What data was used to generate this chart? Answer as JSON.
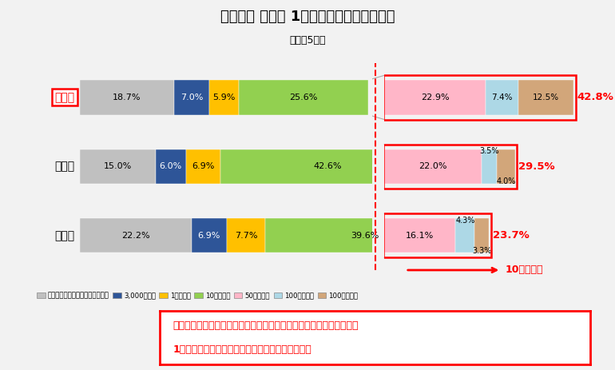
{
  "title": "侵入窃盗 手口別 1件あたりの被害額の割合",
  "subtitle": "（令和5年）",
  "categories": [
    "空き巣",
    "忍込み",
    "居空き"
  ],
  "segments_left": {
    "空き巣": [
      18.7,
      7.0,
      5.9,
      25.6
    ],
    "忍込み": [
      15.0,
      6.0,
      6.9,
      42.6
    ],
    "居空き": [
      22.2,
      6.9,
      7.7,
      39.6
    ]
  },
  "segments_right": {
    "空き巣": [
      22.9,
      7.4,
      12.5
    ],
    "忍込み": [
      22.0,
      3.5,
      4.0
    ],
    "居空き": [
      16.1,
      4.3,
      3.3
    ]
  },
  "totals_right": {
    "空き巣": 42.8,
    "忍込み": 29.5,
    "居空き": 23.7
  },
  "colors_left": [
    "#c0c0c0",
    "#2e5598",
    "#ffc000",
    "#92d050"
  ],
  "colors_right": [
    "#ffb6c8",
    "#add8e6",
    "#d2a67a"
  ],
  "legend_labels": [
    "被害なし／被害額認定困難なもの",
    "3,000円未満",
    "1万円未満",
    "10万円未満",
    "50万円未満",
    "100万円未満",
    "100万円以上"
  ],
  "legend_colors": [
    "#c0c0c0",
    "#2e5598",
    "#ffc000",
    "#92d050",
    "#ffb6c8",
    "#add8e6",
    "#d2a67a"
  ],
  "annotation_line1": "在宅中に侵入される「忍込み」「居空き」と比べ、「空き巣」の方が",
  "annotation_line2": "1件あたりの被害額が大きくなる傾向が見られる。",
  "arrow_label": "10万円以上",
  "background_color": "#f2f2f2",
  "bar_bg_color": "#e8e8e8"
}
